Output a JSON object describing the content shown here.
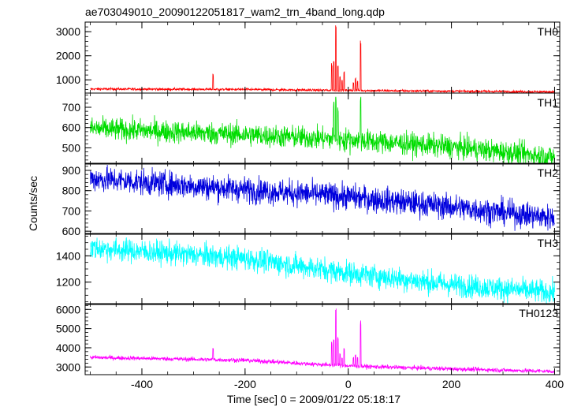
{
  "chart_data": {
    "type": "line",
    "title": "ae703049010_20090122051817_wam2_trn_4band_long.qdp",
    "xlabel": "Time [sec] 0 = 2009/01/22 05:18:17",
    "ylabel": "Counts/sec",
    "xlim": [
      -510,
      410
    ],
    "x_ticks": [
      -400,
      -200,
      0,
      200,
      400
    ],
    "panels": [
      {
        "name": "TH0",
        "color": "#ff0000",
        "ylim": [
          450,
          3400
        ],
        "y_ticks": [
          1000,
          2000,
          3000
        ],
        "baseline": [
          [
            -500,
            620
          ],
          [
            -200,
            600
          ],
          [
            0,
            560
          ],
          [
            200,
            530
          ],
          [
            400,
            500
          ]
        ],
        "noise": 25,
        "spikes": [
          [
            -262,
            1250
          ],
          [
            -32,
            1700
          ],
          [
            -28,
            1900
          ],
          [
            -24,
            3350
          ],
          [
            -20,
            1600
          ],
          [
            -16,
            1200
          ],
          [
            -12,
            1000
          ],
          [
            -8,
            1400
          ],
          [
            10,
            900
          ],
          [
            14,
            1100
          ],
          [
            18,
            950
          ],
          [
            24,
            2650
          ]
        ]
      },
      {
        "name": "TH1",
        "color": "#00dd00",
        "ylim": [
          420,
          770
        ],
        "y_ticks": [
          500,
          600,
          700
        ],
        "baseline": [
          [
            -500,
            595
          ],
          [
            -200,
            565
          ],
          [
            0,
            540
          ],
          [
            200,
            505
          ],
          [
            400,
            455
          ]
        ],
        "noise": 28,
        "spikes": [
          [
            -28,
            730
          ],
          [
            -24,
            760
          ],
          [
            -20,
            700
          ],
          [
            24,
            760
          ]
        ]
      },
      {
        "name": "TH2",
        "color": "#0000dd",
        "ylim": [
          585,
          935
        ],
        "y_ticks": [
          600,
          700,
          800,
          900
        ],
        "baseline": [
          [
            -500,
            860
          ],
          [
            -200,
            805
          ],
          [
            0,
            770
          ],
          [
            200,
            720
          ],
          [
            400,
            665
          ]
        ],
        "noise": 32,
        "spikes": []
      },
      {
        "name": "TH3",
        "color": "#00ffff",
        "ylim": [
          1030,
          1570
        ],
        "y_ticks": [
          1200,
          1400
        ],
        "baseline": [
          [
            -500,
            1460
          ],
          [
            -200,
            1380
          ],
          [
            0,
            1270
          ],
          [
            200,
            1180
          ],
          [
            400,
            1120
          ]
        ],
        "noise": 45,
        "spikes": []
      },
      {
        "name": "TH0123",
        "color": "#ff00ff",
        "ylim": [
          2600,
          6300
        ],
        "y_ticks": [
          3000,
          4000,
          5000,
          6000
        ],
        "baseline": [
          [
            -500,
            3500
          ],
          [
            -200,
            3350
          ],
          [
            0,
            3050
          ],
          [
            200,
            2900
          ],
          [
            400,
            2770
          ]
        ],
        "noise": 55,
        "spikes": [
          [
            -262,
            4000
          ],
          [
            -32,
            4300
          ],
          [
            -28,
            4500
          ],
          [
            -24,
            6150
          ],
          [
            -20,
            4600
          ],
          [
            -16,
            3700
          ],
          [
            -12,
            3500
          ],
          [
            -8,
            4000
          ],
          [
            10,
            3500
          ],
          [
            14,
            3700
          ],
          [
            18,
            3550
          ],
          [
            24,
            5450
          ]
        ]
      }
    ]
  }
}
